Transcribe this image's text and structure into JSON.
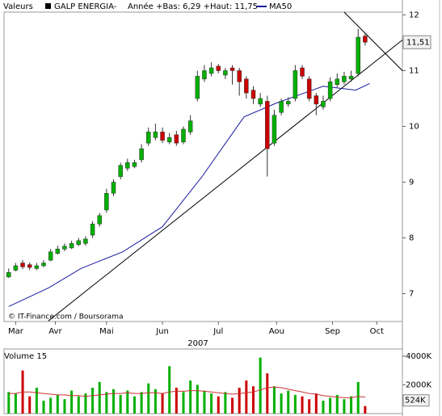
{
  "chart_data": [
    {
      "type": "candlestick",
      "header": [
        "Valeurs",
        "GALP ENERGIA-",
        "Année +Bas: 6,29 +Haut: 11,75"
      ],
      "source": "© IT-Finance.com / Boursorama",
      "xlabel": "2007",
      "x": [
        0,
        3,
        6,
        9,
        12,
        15,
        18,
        21,
        24,
        27,
        30,
        33,
        36,
        39,
        42,
        45,
        48,
        51,
        54,
        57,
        60,
        63,
        66,
        69,
        72,
        75,
        78,
        81,
        84,
        87,
        90,
        93,
        96,
        99,
        102,
        105,
        108,
        111,
        114,
        117,
        120,
        123,
        126,
        129,
        132,
        135,
        138,
        141,
        144,
        147,
        150,
        153
      ],
      "open": [
        7.3,
        7.42,
        7.55,
        7.52,
        7.45,
        7.5,
        7.6,
        7.72,
        7.8,
        7.82,
        7.88,
        7.9,
        8.05,
        8.25,
        8.5,
        8.8,
        9.1,
        9.25,
        9.28,
        9.4,
        9.7,
        9.8,
        9.9,
        9.72,
        9.85,
        9.72,
        9.9,
        10.5,
        10.85,
        10.95,
        11.08,
        10.92,
        11.05,
        11.0,
        10.85,
        10.65,
        10.4,
        10.45,
        9.7,
        10.25,
        10.4,
        10.5,
        11.05,
        10.85,
        10.55,
        10.35,
        10.5,
        10.75,
        10.8,
        10.85,
        10.95,
        11.62
      ],
      "high": [
        7.45,
        7.55,
        7.6,
        7.56,
        7.55,
        7.6,
        7.8,
        7.86,
        7.9,
        7.95,
        8.0,
        8.03,
        8.3,
        8.45,
        8.88,
        9.05,
        9.35,
        9.42,
        9.4,
        9.68,
        9.98,
        10.05,
        9.98,
        9.88,
        9.92,
        10.0,
        10.2,
        11.0,
        11.1,
        11.15,
        11.12,
        11.05,
        11.1,
        11.05,
        10.9,
        10.72,
        10.6,
        10.55,
        10.3,
        10.5,
        10.52,
        11.1,
        11.1,
        10.9,
        10.6,
        10.55,
        10.88,
        10.95,
        10.98,
        11.0,
        11.75,
        11.66
      ],
      "low": [
        7.28,
        7.4,
        7.44,
        7.42,
        7.42,
        7.47,
        7.58,
        7.7,
        7.76,
        7.8,
        7.85,
        7.86,
        8.0,
        8.2,
        8.45,
        8.75,
        9.05,
        9.2,
        9.25,
        9.35,
        9.65,
        9.75,
        9.7,
        9.68,
        9.65,
        9.68,
        9.85,
        10.45,
        10.8,
        10.9,
        10.95,
        10.85,
        10.75,
        10.55,
        10.5,
        10.4,
        10.35,
        9.1,
        9.65,
        10.2,
        10.35,
        10.45,
        10.85,
        10.45,
        10.2,
        10.3,
        10.45,
        10.7,
        10.75,
        10.8,
        10.9,
        11.45
      ],
      "close": [
        7.38,
        7.5,
        7.48,
        7.47,
        7.5,
        7.55,
        7.75,
        7.8,
        7.85,
        7.9,
        7.95,
        7.98,
        8.25,
        8.4,
        8.8,
        9.0,
        9.3,
        9.35,
        9.35,
        9.6,
        9.9,
        9.9,
        9.75,
        9.8,
        9.7,
        9.95,
        10.1,
        10.9,
        11.0,
        11.05,
        11.0,
        11.0,
        11.0,
        10.8,
        10.6,
        10.5,
        10.5,
        9.6,
        10.2,
        10.45,
        10.45,
        11.0,
        10.9,
        10.5,
        10.4,
        10.45,
        10.8,
        10.85,
        10.9,
        10.9,
        11.6,
        11.51
      ],
      "up_color": "#00b000",
      "down_color": "#cc0000",
      "overlays": [
        {
          "name": "MA50",
          "color": "#1a1aa0",
          "x": [
            0,
            17,
            31,
            49,
            66,
            83,
            101,
            115,
            135,
            149,
            155
          ],
          "values": [
            6.77,
            7.1,
            7.45,
            7.75,
            8.2,
            9.1,
            10.17,
            10.42,
            10.72,
            10.65,
            10.77
          ]
        }
      ],
      "trendlines": [
        {
          "color": "#000000",
          "x": [
            17,
            169
          ],
          "values": [
            6.51,
            11.55
          ]
        },
        {
          "color": "#000000",
          "x": [
            144,
            169
          ],
          "values": [
            12.05,
            11.0
          ]
        }
      ],
      "last_value": 11.51,
      "last_value_label": "11,51",
      "xlim": [
        -2,
        169
      ],
      "ylim": [
        6.5,
        12.05
      ],
      "xticks": [
        {
          "value": 3,
          "label": "Mar"
        },
        {
          "value": 20,
          "label": "Avr"
        },
        {
          "value": 42,
          "label": "Mai"
        },
        {
          "value": 66,
          "label": "Jun"
        },
        {
          "value": 90,
          "label": "Jul"
        },
        {
          "value": 115,
          "label": "Aou"
        },
        {
          "value": 139,
          "label": "Sep"
        },
        {
          "value": 158,
          "label": "Oct"
        }
      ],
      "yticks": [
        7,
        8,
        9,
        10,
        11,
        12
      ]
    },
    {
      "type": "bar",
      "title": "Volume 15",
      "x": [
        0,
        3,
        6,
        9,
        12,
        15,
        18,
        21,
        24,
        27,
        30,
        33,
        36,
        39,
        42,
        45,
        48,
        51,
        54,
        57,
        60,
        63,
        66,
        69,
        72,
        75,
        78,
        81,
        84,
        87,
        90,
        93,
        96,
        99,
        102,
        105,
        108,
        111,
        114,
        117,
        120,
        123,
        126,
        129,
        132,
        135,
        138,
        141,
        144,
        147,
        150,
        153
      ],
      "values": [
        1500,
        1400,
        3000,
        1200,
        1800,
        900,
        1100,
        1300,
        1000,
        1600,
        1200,
        1400,
        1800,
        2200,
        1500,
        1700,
        1300,
        1600,
        1200,
        1500,
        2100,
        1700,
        1400,
        3300,
        1800,
        1500,
        2300,
        2000,
        1600,
        1400,
        1200,
        1500,
        1100,
        1800,
        2300,
        1900,
        3900,
        2800,
        1900,
        1400,
        1600,
        1300,
        1200,
        1000,
        1400,
        900,
        1100,
        1300,
        1000,
        1200,
        2200,
        524
      ],
      "last_value_label": "524K",
      "ma_color": "#cc3333",
      "ma": [
        1400,
        1400,
        1500,
        1500,
        1450,
        1400,
        1350,
        1300,
        1300,
        1250,
        1250,
        1200,
        1250,
        1300,
        1350,
        1400,
        1400,
        1450,
        1400,
        1400,
        1450,
        1450,
        1400,
        1500,
        1550,
        1550,
        1600,
        1600,
        1550,
        1500,
        1450,
        1400,
        1350,
        1400,
        1450,
        1500,
        1650,
        1800,
        1850,
        1800,
        1700,
        1600,
        1500,
        1400,
        1350,
        1250,
        1200,
        1150,
        1100,
        1100,
        1200,
        1150
      ],
      "xlim": [
        -2,
        169
      ],
      "ylim": [
        0,
        4500
      ],
      "yticks": [
        {
          "value": 2000,
          "label": "2000K"
        },
        {
          "value": 4000,
          "label": "4000K"
        }
      ]
    }
  ]
}
